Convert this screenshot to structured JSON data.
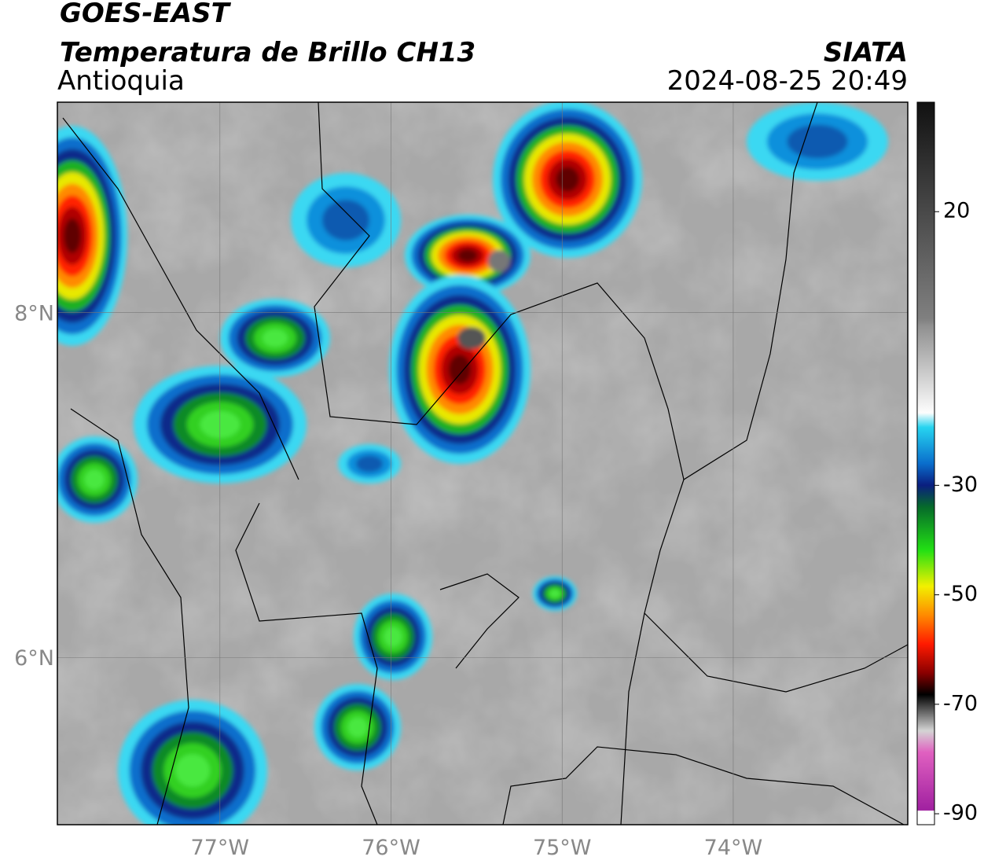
{
  "header": {
    "satellite": "GOES-EAST",
    "product": "Temperatura de Brillo CH13",
    "region": "Antioquia",
    "source": "SIATA",
    "datetime": "2024-08-25 20:49"
  },
  "map": {
    "xlim": [
      -77.95,
      -72.98
    ],
    "ylim": [
      5.03,
      9.22
    ],
    "xticks": [
      {
        "value": -77,
        "label": "77°W"
      },
      {
        "value": -76,
        "label": "76°W"
      },
      {
        "value": -75,
        "label": "75°W"
      },
      {
        "value": -74,
        "label": "74°W"
      }
    ],
    "yticks": [
      {
        "value": 6,
        "label": "6°N"
      },
      {
        "value": 8,
        "label": "8°N"
      }
    ]
  },
  "colorbar": {
    "lim": [
      -92,
      40
    ],
    "ticks": [
      20,
      -30,
      -50,
      -70,
      -90
    ]
  }
}
